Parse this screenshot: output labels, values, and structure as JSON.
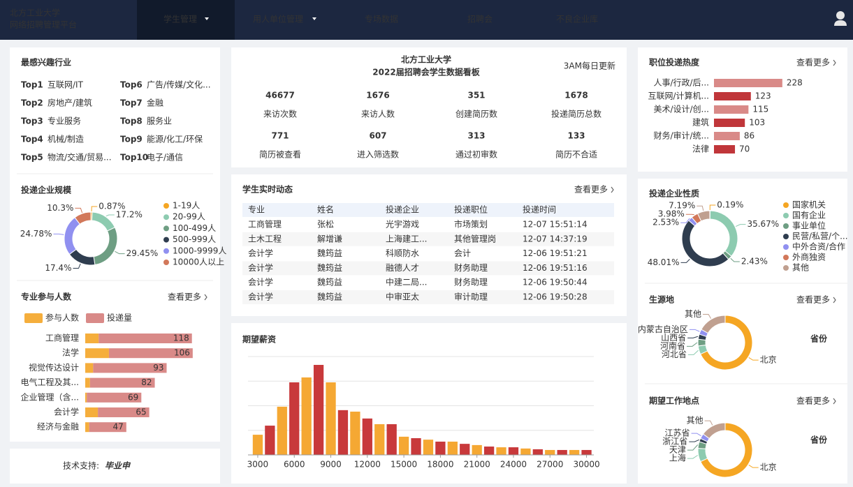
{
  "nav": {
    "brand": [
      "北方工业大学",
      "网络招聘管理平台"
    ],
    "items": [
      "学生管理",
      "用人单位管理",
      "专场数据",
      "招聘会",
      "不良企业库"
    ]
  },
  "industry": {
    "title": "最感兴趣行业",
    "items": [
      {
        "rank": "Top1",
        "name": "互联网/IT"
      },
      {
        "rank": "Top2",
        "name": "房地产/建筑"
      },
      {
        "rank": "Top3",
        "name": "专业服务"
      },
      {
        "rank": "Top4",
        "name": "机械/制造"
      },
      {
        "rank": "Top5",
        "name": "物流/交通/贸易..."
      },
      {
        "rank": "Top6",
        "name": "广告/传媒/文化..."
      },
      {
        "rank": "Top7",
        "name": "金融"
      },
      {
        "rank": "Top8",
        "name": "服务业"
      },
      {
        "rank": "Top9",
        "name": "能源/化工/环保"
      },
      {
        "rank": "Top10",
        "name": "电子/通信"
      }
    ]
  },
  "dashboard": {
    "title": "北方工业大学",
    "subtitle": "2022届招聘会学生数据看板",
    "update": "3AM每日更新",
    "stats": [
      {
        "value": 46677,
        "label": "来访次数"
      },
      {
        "value": 1676,
        "label": "来访人数"
      },
      {
        "value": 351,
        "label": "创建简历数"
      },
      {
        "value": 1678,
        "label": "投递简历总数"
      },
      {
        "value": 771,
        "label": "简历被查看"
      },
      {
        "value": 607,
        "label": "进入筛选数"
      },
      {
        "value": 313,
        "label": "通过初审数"
      },
      {
        "value": 133,
        "label": "简历不合适"
      }
    ]
  },
  "feed": {
    "title": "学生实时动态",
    "more": "查看更多",
    "columns": [
      "专业",
      "姓名",
      "投递企业",
      "投递职位",
      "投递时间"
    ],
    "rows": [
      [
        "工商管理",
        "张松",
        "光宇游戏",
        "市场策划",
        "12-07 15:51:14"
      ],
      [
        "土木工程",
        "解增谦",
        "上海建工...",
        "其他管理岗",
        "12-07 14:37:19"
      ],
      [
        "会计学",
        "魏筠益",
        "科顺防水",
        "会计",
        "12-06 19:51:21"
      ],
      [
        "会计学",
        "魏筠益",
        "融德人才",
        "财务助理",
        "12-06 19:51:16"
      ],
      [
        "会计学",
        "魏筠益",
        "中建二局...",
        "财务助理",
        "12-06 19:50:44"
      ],
      [
        "会计学",
        "魏筠益",
        "中审亚太",
        "审计助理",
        "12-06 19:50:28"
      ]
    ]
  },
  "footer": {
    "label": "技术支持:",
    "logo": "毕业申"
  },
  "chart_data": [
    {
      "type": "donut",
      "title": "投递企业规模",
      "categories": [
        "1-19人",
        "20-99人",
        "100-499人",
        "500-999人",
        "1000-9999人",
        "10000人以上"
      ],
      "values": [
        0.87,
        17.2,
        29.45,
        17.4,
        24.78,
        10.3
      ],
      "value_labels": [
        "0.87%",
        "17.2%",
        "29.45%",
        "17.4%",
        "24.78%",
        "10.3%"
      ],
      "colors": [
        "#f5a623",
        "#8dcbb0",
        "#6e9e83",
        "#2f3d4f",
        "#9090f0",
        "#d2785a"
      ],
      "legend": "right"
    },
    {
      "type": "hbar",
      "title": "专业参与人数",
      "more": "查看更多",
      "categories": [
        "工商管理",
        "法学",
        "视觉传达设计",
        "电气工程及其...",
        "企业管理（含...",
        "会计学",
        "经济与金融"
      ],
      "series": [
        {
          "name": "参与人数",
          "color": "#f5ae3c",
          "values": [
            17,
            30,
            10,
            6,
            2,
            16,
            5
          ]
        },
        {
          "name": "投递量",
          "color": "#d98a88",
          "values": [
            118,
            106,
            93,
            82,
            69,
            65,
            47
          ]
        }
      ],
      "stacked": true,
      "xlim": [
        0,
        160
      ]
    },
    {
      "type": "bar",
      "title": "期望薪资",
      "x": [
        3000,
        4000,
        5000,
        6000,
        7000,
        8000,
        9000,
        10000,
        11000,
        12000,
        13000,
        14000,
        15000,
        16000,
        17000,
        18000,
        19000,
        20000,
        21000,
        22000,
        23000,
        24000,
        25000,
        26000,
        27000,
        28000,
        29000,
        30000
      ],
      "values": [
        82,
        119,
        196,
        295,
        315,
        366,
        295,
        182,
        176,
        148,
        125,
        125,
        74,
        68,
        62,
        54,
        54,
        45,
        40,
        34,
        31,
        31,
        26,
        23,
        20,
        20,
        20,
        20
      ],
      "colors": [
        "#f5a833",
        "#c8393b"
      ],
      "xlim": [
        2200,
        30600
      ],
      "xticks": [
        3000,
        6000,
        9000,
        12000,
        15000,
        18000,
        21000,
        24000,
        27000,
        30000
      ],
      "ylim": [
        0,
        400
      ],
      "yticks": [
        0,
        100,
        200,
        300,
        400
      ],
      "grid": true
    },
    {
      "type": "hbar",
      "title": "职位投递热度",
      "more": "查看更多",
      "categories": [
        "人事/行政/后...",
        "互联网/计算机...",
        "美术/设计/创...",
        "建筑",
        "财务/审计/统...",
        "法律"
      ],
      "values": [
        228,
        123,
        115,
        103,
        86,
        70
      ],
      "colors": [
        "#d98a88",
        "#c0363a"
      ],
      "xlim": [
        0,
        240
      ]
    },
    {
      "type": "donut",
      "title": "投递企业性质",
      "categories": [
        "国家机关",
        "国有企业",
        "事业单位",
        "民营/私营/个...",
        "中外合资/合作",
        "外商独资",
        "其他"
      ],
      "values": [
        0.19,
        35.67,
        2.43,
        48.01,
        2.53,
        3.98,
        7.19
      ],
      "value_labels": [
        "0.19%",
        "35.67%",
        "2.43%",
        "48.01%",
        "2.53%",
        "3.98%",
        "7.19%"
      ],
      "colors": [
        "#f5a623",
        "#8dcbb0",
        "#6e9e83",
        "#2f3d4f",
        "#9090f0",
        "#d2785a",
        "#c0a090"
      ],
      "legend": "right"
    },
    {
      "type": "donut",
      "title": "生源地",
      "more": "查看更多",
      "side_label": "省份",
      "categories": [
        "北京",
        "河北省",
        "河南省",
        "山西省",
        "内蒙古自治区",
        "其他"
      ],
      "values": [
        68,
        5,
        4,
        3,
        3,
        17
      ],
      "colors": [
        "#f5a623",
        "#8dcbb0",
        "#6e9e83",
        "#2f3d4f",
        "#9090f0",
        "#c0a090"
      ]
    },
    {
      "type": "donut",
      "title": "期望工作地点",
      "more": "查看更多",
      "side_label": "省份",
      "categories": [
        "北京",
        "上海",
        "天津",
        "浙江省",
        "江苏省",
        "其他"
      ],
      "values": [
        68,
        8,
        4,
        2,
        3,
        15
      ],
      "colors": [
        "#f5a623",
        "#8dcbb0",
        "#6e9e83",
        "#2f3d4f",
        "#9090f0",
        "#c0a090"
      ]
    }
  ]
}
